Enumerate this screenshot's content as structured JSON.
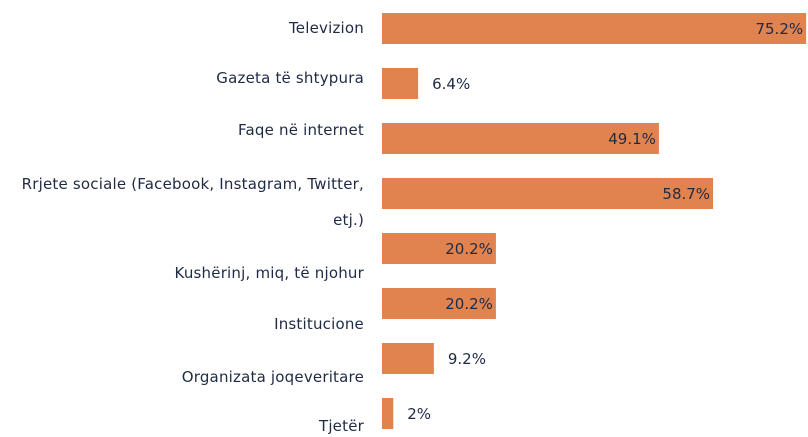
{
  "chart_data": {
    "type": "bar",
    "orientation": "horizontal",
    "categories": [
      "Televizion",
      "Gazeta të shtypura",
      "Faqe në internet",
      "Rrjete sociale (Facebook, Instagram, Twitter, etj.)",
      "Kushërinj, miq, të njohur",
      "Institucione",
      "Organizata joqeveritare",
      "Tjetër"
    ],
    "values": [
      75.2,
      6.4,
      49.1,
      58.7,
      20.2,
      20.2,
      9.2,
      2
    ],
    "value_labels": [
      "75.2%",
      "6.4%",
      "49.1%",
      "58.7%",
      "20.2%",
      "20.2%",
      "9.2%",
      "2%"
    ],
    "color": "#e0834f"
  }
}
